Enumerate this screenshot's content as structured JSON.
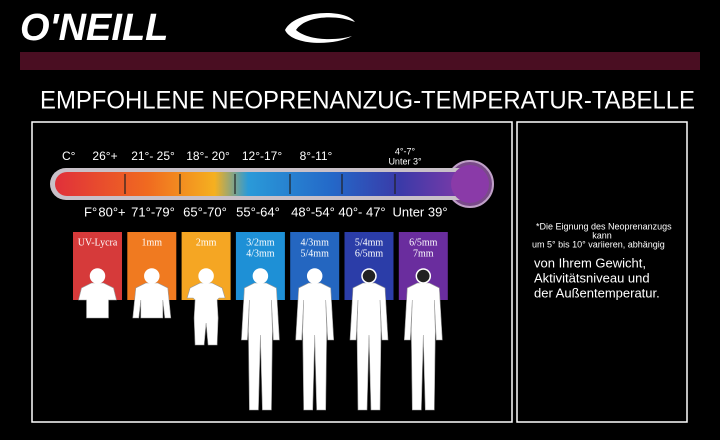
{
  "header": {
    "brand": "O'NEILL",
    "title": "EMPFOHLENE NEOPRENANZUG-TEMPERATUR-TABELLE"
  },
  "thermometer": {
    "celsius_unit": "C°",
    "celsius": [
      "26°+",
      "21°- 25°",
      "18°- 20°",
      "12°-17°",
      "8°-11°",
      "4°-7°"
    ],
    "celsius_below": "Unter 3°",
    "fahrenheit_unit": "F°",
    "fahrenheit": [
      "80°+",
      "71°-79°",
      "65°-70°",
      "55°-64°",
      "48°-54°",
      "40°- 47°",
      "Unter 39°"
    ]
  },
  "columns": [
    {
      "lines": [
        "UV-Lycra"
      ]
    },
    {
      "lines": [
        "1mm"
      ]
    },
    {
      "lines": [
        "2mm"
      ]
    },
    {
      "lines": [
        "3/2mm",
        "4/3mm"
      ]
    },
    {
      "lines": [
        "4/3mm",
        "5/4mm"
      ]
    },
    {
      "lines": [
        "5/4mm",
        "6/5mm"
      ]
    },
    {
      "lines": [
        "6/5mm",
        "7mm"
      ]
    }
  ],
  "note": {
    "small": [
      "*Die Eignung des Neoprenanzugs",
      "kann",
      "um 5° bis 10° variieren, abhängig"
    ],
    "large": [
      "von Ihrem Gewicht,",
      "Aktivitätsniveau und",
      "der Außentemperatur."
    ]
  }
}
